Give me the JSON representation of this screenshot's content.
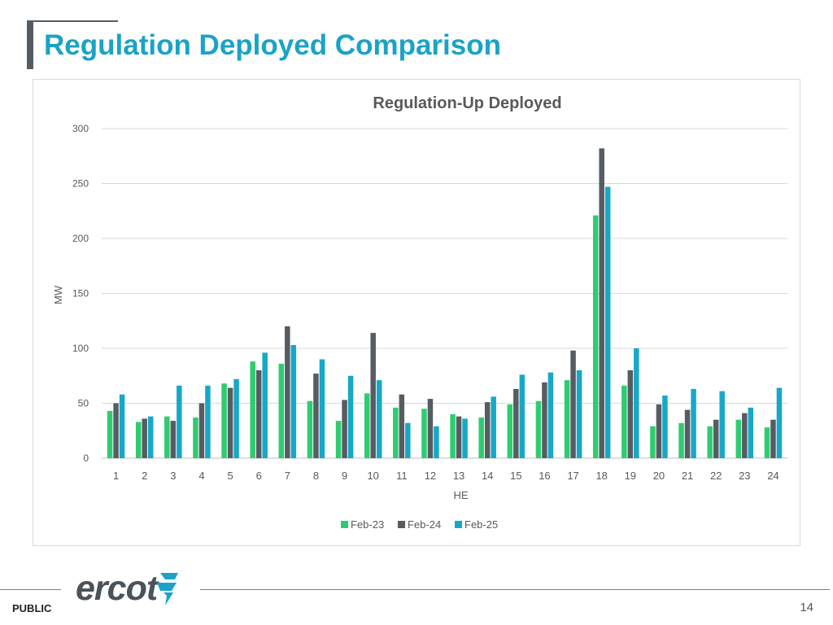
{
  "slide": {
    "title": "Regulation Deployed Comparison",
    "footer_label": "PUBLIC",
    "page_number": "14",
    "logo_text": "ercot",
    "colors": {
      "title": "#1aa3c6",
      "bar_dark": "#555d63",
      "logo_accent": "#1aa3c6"
    }
  },
  "chart_data": {
    "type": "bar",
    "title": "Regulation-Up Deployed",
    "xlabel": "HE",
    "ylabel": "MW",
    "ylim": [
      0,
      300
    ],
    "yticks": [
      0,
      50,
      100,
      150,
      200,
      250,
      300
    ],
    "grid": true,
    "legend_position": "bottom",
    "categories": [
      "1",
      "2",
      "3",
      "4",
      "5",
      "6",
      "7",
      "8",
      "9",
      "10",
      "11",
      "12",
      "13",
      "14",
      "15",
      "16",
      "17",
      "18",
      "19",
      "20",
      "21",
      "22",
      "23",
      "24"
    ],
    "series": [
      {
        "name": "Feb-23",
        "color": "#2ecc71",
        "values": [
          43,
          33,
          38,
          37,
          68,
          88,
          86,
          52,
          34,
          59,
          46,
          45,
          40,
          37,
          49,
          52,
          71,
          221,
          66,
          29,
          32,
          29,
          35,
          28
        ]
      },
      {
        "name": "Feb-24",
        "color": "#555d63",
        "values": [
          50,
          36,
          34,
          50,
          64,
          80,
          120,
          77,
          53,
          114,
          58,
          54,
          38,
          51,
          63,
          69,
          98,
          282,
          80,
          49,
          44,
          35,
          41,
          35
        ]
      },
      {
        "name": "Feb-25",
        "color": "#17a8c8",
        "values": [
          58,
          38,
          66,
          66,
          72,
          96,
          103,
          90,
          75,
          71,
          32,
          29,
          36,
          56,
          76,
          78,
          80,
          247,
          100,
          57,
          63,
          61,
          46,
          64
        ]
      }
    ]
  }
}
